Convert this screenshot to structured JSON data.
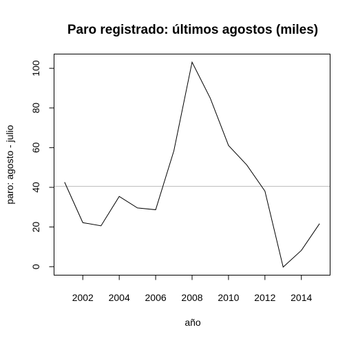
{
  "chart_data": {
    "type": "line",
    "title": "Paro registrado: últimos agostos (miles)",
    "xlabel": "año",
    "ylabel": "paro: agosto - julio",
    "x": [
      2001,
      2002,
      2003,
      2004,
      2005,
      2006,
      2007,
      2008,
      2009,
      2010,
      2011,
      2012,
      2013,
      2014,
      2015
    ],
    "series": [
      {
        "values": [
          42.6,
          22.2,
          20.6,
          35.4,
          29.6,
          28.7,
          58.4,
          103.1,
          84.9,
          61.1,
          51.3,
          38.1,
          -0.2,
          8.2,
          21.7
        ]
      }
    ],
    "xlim": [
      2000.44,
      2015.56
    ],
    "ylim": [
      -4.1,
      107.0
    ],
    "xticks": [
      2002,
      2004,
      2006,
      2008,
      2010,
      2012,
      2014
    ],
    "yticks": [
      0,
      20,
      40,
      60,
      80,
      100
    ],
    "hline": 40.5,
    "line_color": "#000000",
    "hline_color": "#bebebe",
    "grid": false,
    "legend": "none"
  }
}
